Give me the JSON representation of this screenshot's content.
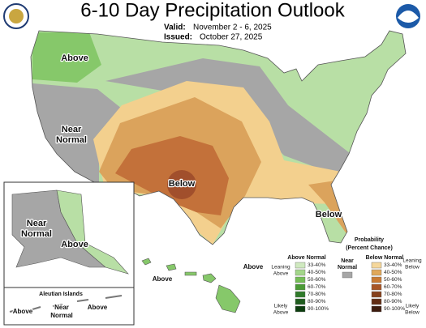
{
  "header": {
    "title": "6-10 Day Precipitation Outlook",
    "valid_label": "Valid:",
    "valid": "November 2 - 6, 2025",
    "issued_label": "Issued:",
    "issued": "October 27, 2025"
  },
  "map_labels": {
    "conus_above": "Above",
    "conus_near": [
      "Near",
      "Normal"
    ],
    "conus_below": "Below",
    "florida_below": "Below",
    "alaska_near": [
      "Near",
      "Normal"
    ],
    "alaska_above": "Above",
    "aleutian_title": "Aleutian Islands",
    "aleutian_above_west": "Above",
    "aleutian_near": [
      "Near",
      "Normal"
    ],
    "aleutian_above_east": "Above",
    "hawaii_above_west": "Above",
    "hawaii_above_east": "Above"
  },
  "legend": {
    "title": [
      "Probability",
      "(Percent Chance)"
    ],
    "above_header": "Above Normal",
    "below_header": "Below Normal",
    "near": [
      "Near",
      "Normal"
    ],
    "near_color": "#a6a6a6",
    "leaning_above": [
      "Leaning",
      "Above"
    ],
    "likely_above": [
      "Likely",
      "Above"
    ],
    "leaning_below": [
      "Leaning",
      "Below"
    ],
    "likely_below": [
      "Likely",
      "Below"
    ],
    "ranges": [
      "33-40%",
      "40-50%",
      "50-60%",
      "60-70%",
      "70-80%",
      "80-90%",
      "90-100%"
    ],
    "above_colors": [
      "#cfe9bf",
      "#a3d68a",
      "#74bd56",
      "#4a9a35",
      "#2f7a2a",
      "#1f5c1e",
      "#0d3d0f"
    ],
    "below_colors": [
      "#f5d79b",
      "#e0a85a",
      "#c97a33",
      "#a85526",
      "#85401c",
      "#622d14",
      "#3d1c0e"
    ]
  }
}
